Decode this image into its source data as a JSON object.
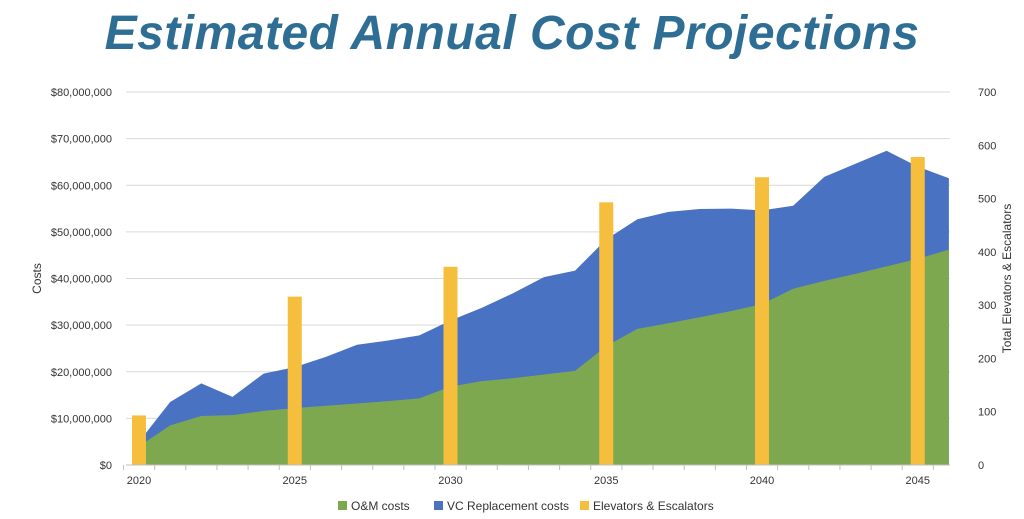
{
  "chart_data": {
    "type": "area",
    "title": "Estimated Annual Cost Projections",
    "ylabel": "Costs",
    "y2label": "Total Elevators & Escalators",
    "ylim": [
      0,
      80000000
    ],
    "y2lim": [
      0,
      700
    ],
    "xlim": [
      2020,
      2046
    ],
    "x_ticks": [
      2020,
      2025,
      2030,
      2035,
      2040,
      2045
    ],
    "y_ticks": [
      0,
      10000000,
      20000000,
      30000000,
      40000000,
      50000000,
      60000000,
      70000000,
      80000000
    ],
    "y_tick_labels": [
      "$0",
      "$10,000,000",
      "$20,000,000",
      "$30,000,000",
      "$40,000,000",
      "$50,000,000",
      "$60,000,000",
      "$70,000,000",
      "$80,000,000"
    ],
    "y2_ticks": [
      0,
      100,
      200,
      300,
      400,
      500,
      600,
      700
    ],
    "x": [
      2020,
      2021,
      2022,
      2023,
      2024,
      2025,
      2026,
      2027,
      2028,
      2029,
      2030,
      2031,
      2032,
      2033,
      2034,
      2035,
      2036,
      2037,
      2038,
      2039,
      2040,
      2041,
      2042,
      2043,
      2044,
      2045,
      2046
    ],
    "series": [
      {
        "name": "O&M costs",
        "type": "area",
        "axis": "left",
        "color": "#7ea850",
        "values": [
          4000000,
          8500000,
          10500000,
          10700000,
          11600000,
          12200000,
          12700000,
          13200000,
          13700000,
          14300000,
          16800000,
          18000000,
          18600000,
          19400000,
          20200000,
          25500000,
          29200000,
          30400000,
          31700000,
          33000000,
          34500000,
          37800000,
          39500000,
          41000000,
          42600000,
          44200000,
          46200000
        ]
      },
      {
        "name": "VC Replacement costs",
        "type": "area",
        "axis": "left",
        "color": "#4a72c2",
        "values": [
          5000000,
          13500000,
          17500000,
          14600000,
          19600000,
          21000000,
          23200000,
          25800000,
          26700000,
          27800000,
          31000000,
          33700000,
          36800000,
          40300000,
          41700000,
          48400000,
          52700000,
          54300000,
          54900000,
          55000000,
          54600000,
          55600000,
          61800000,
          64600000,
          67400000,
          64000000,
          61500000
        ]
      },
      {
        "name": "Elevators & Escalators",
        "type": "bar",
        "axis": "right",
        "color": "#f5be3c",
        "x": [
          2020,
          2025,
          2030,
          2035,
          2040,
          2045
        ],
        "values": [
          93,
          316,
          372,
          493,
          540,
          578
        ]
      }
    ],
    "legend": {
      "position": "bottom",
      "items": [
        "O&M costs",
        "VC Replacement costs",
        "Elevators & Escalators"
      ]
    },
    "grid": true
  }
}
